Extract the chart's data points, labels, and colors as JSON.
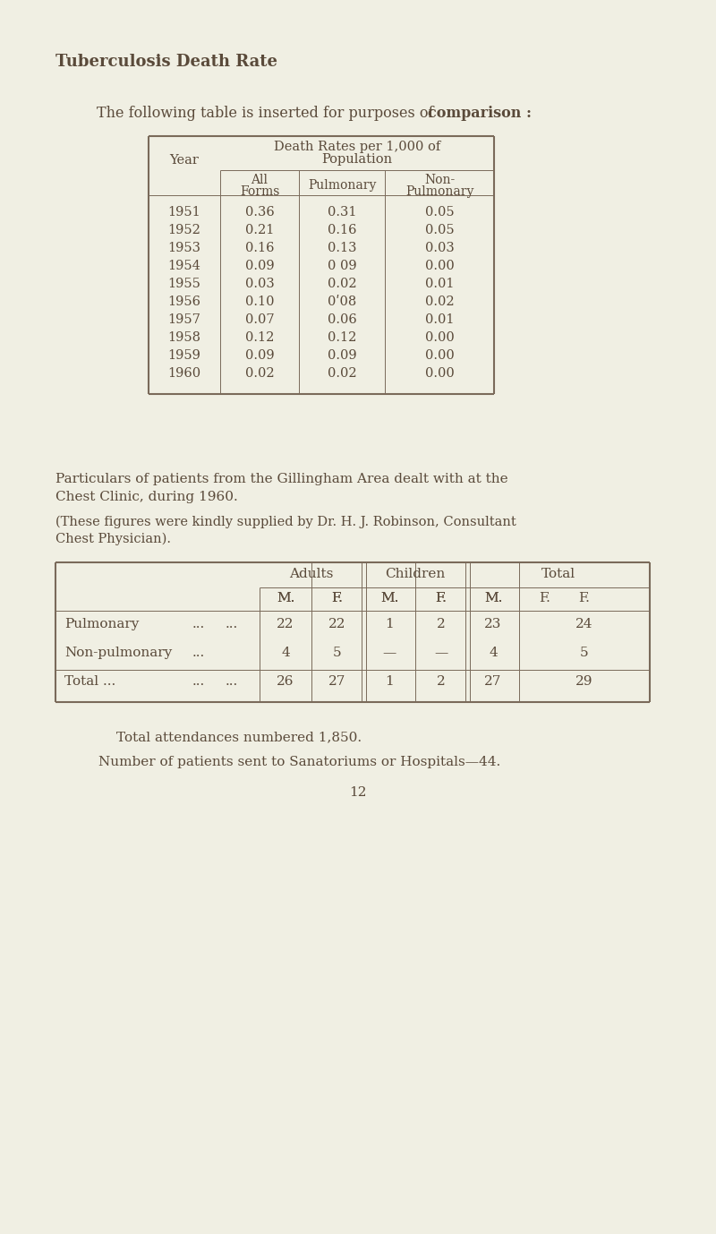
{
  "bg_color": "#f0efe3",
  "text_color": "#5a4a3a",
  "line_color": "#7a6a5a",
  "title": "Tuberculosis Death Rate",
  "table1_years": [
    "1951",
    "1952",
    "1953",
    "1954",
    "1955",
    "1956",
    "1957",
    "1958",
    "1959",
    "1960"
  ],
  "table1_all_forms": [
    "0.36",
    "0.21",
    "0.16",
    "0.09",
    "0.03",
    "0.10",
    "0.07",
    "0.12",
    "0.09",
    "0.02"
  ],
  "table1_pulmonary": [
    "0.31",
    "0.16",
    "0.13",
    "0 09",
    "0.02",
    "0ʹ08",
    "0.06",
    "0.12",
    "0.09",
    "0.02"
  ],
  "table1_non_pulmonary": [
    "0.05",
    "0.05",
    "0.03",
    "0.00",
    "0.01",
    "0.02",
    "0.01",
    "0.00",
    "0.00",
    "0.00"
  ],
  "para1_line1": "Particulars of patients from the Gillingham Area dealt with at the",
  "para1_line2": "Chest Clinic, during 1960.",
  "para2_line1": "(These figures were kindly supplied by Dr. H. J. Robinson, Consultant",
  "para2_line2": "Chest Physician).",
  "footer1": "Total attendances numbered 1,850.",
  "footer2": "Number of patients sent to Sanatoriums or Hospitals—44.",
  "page_num": "12"
}
